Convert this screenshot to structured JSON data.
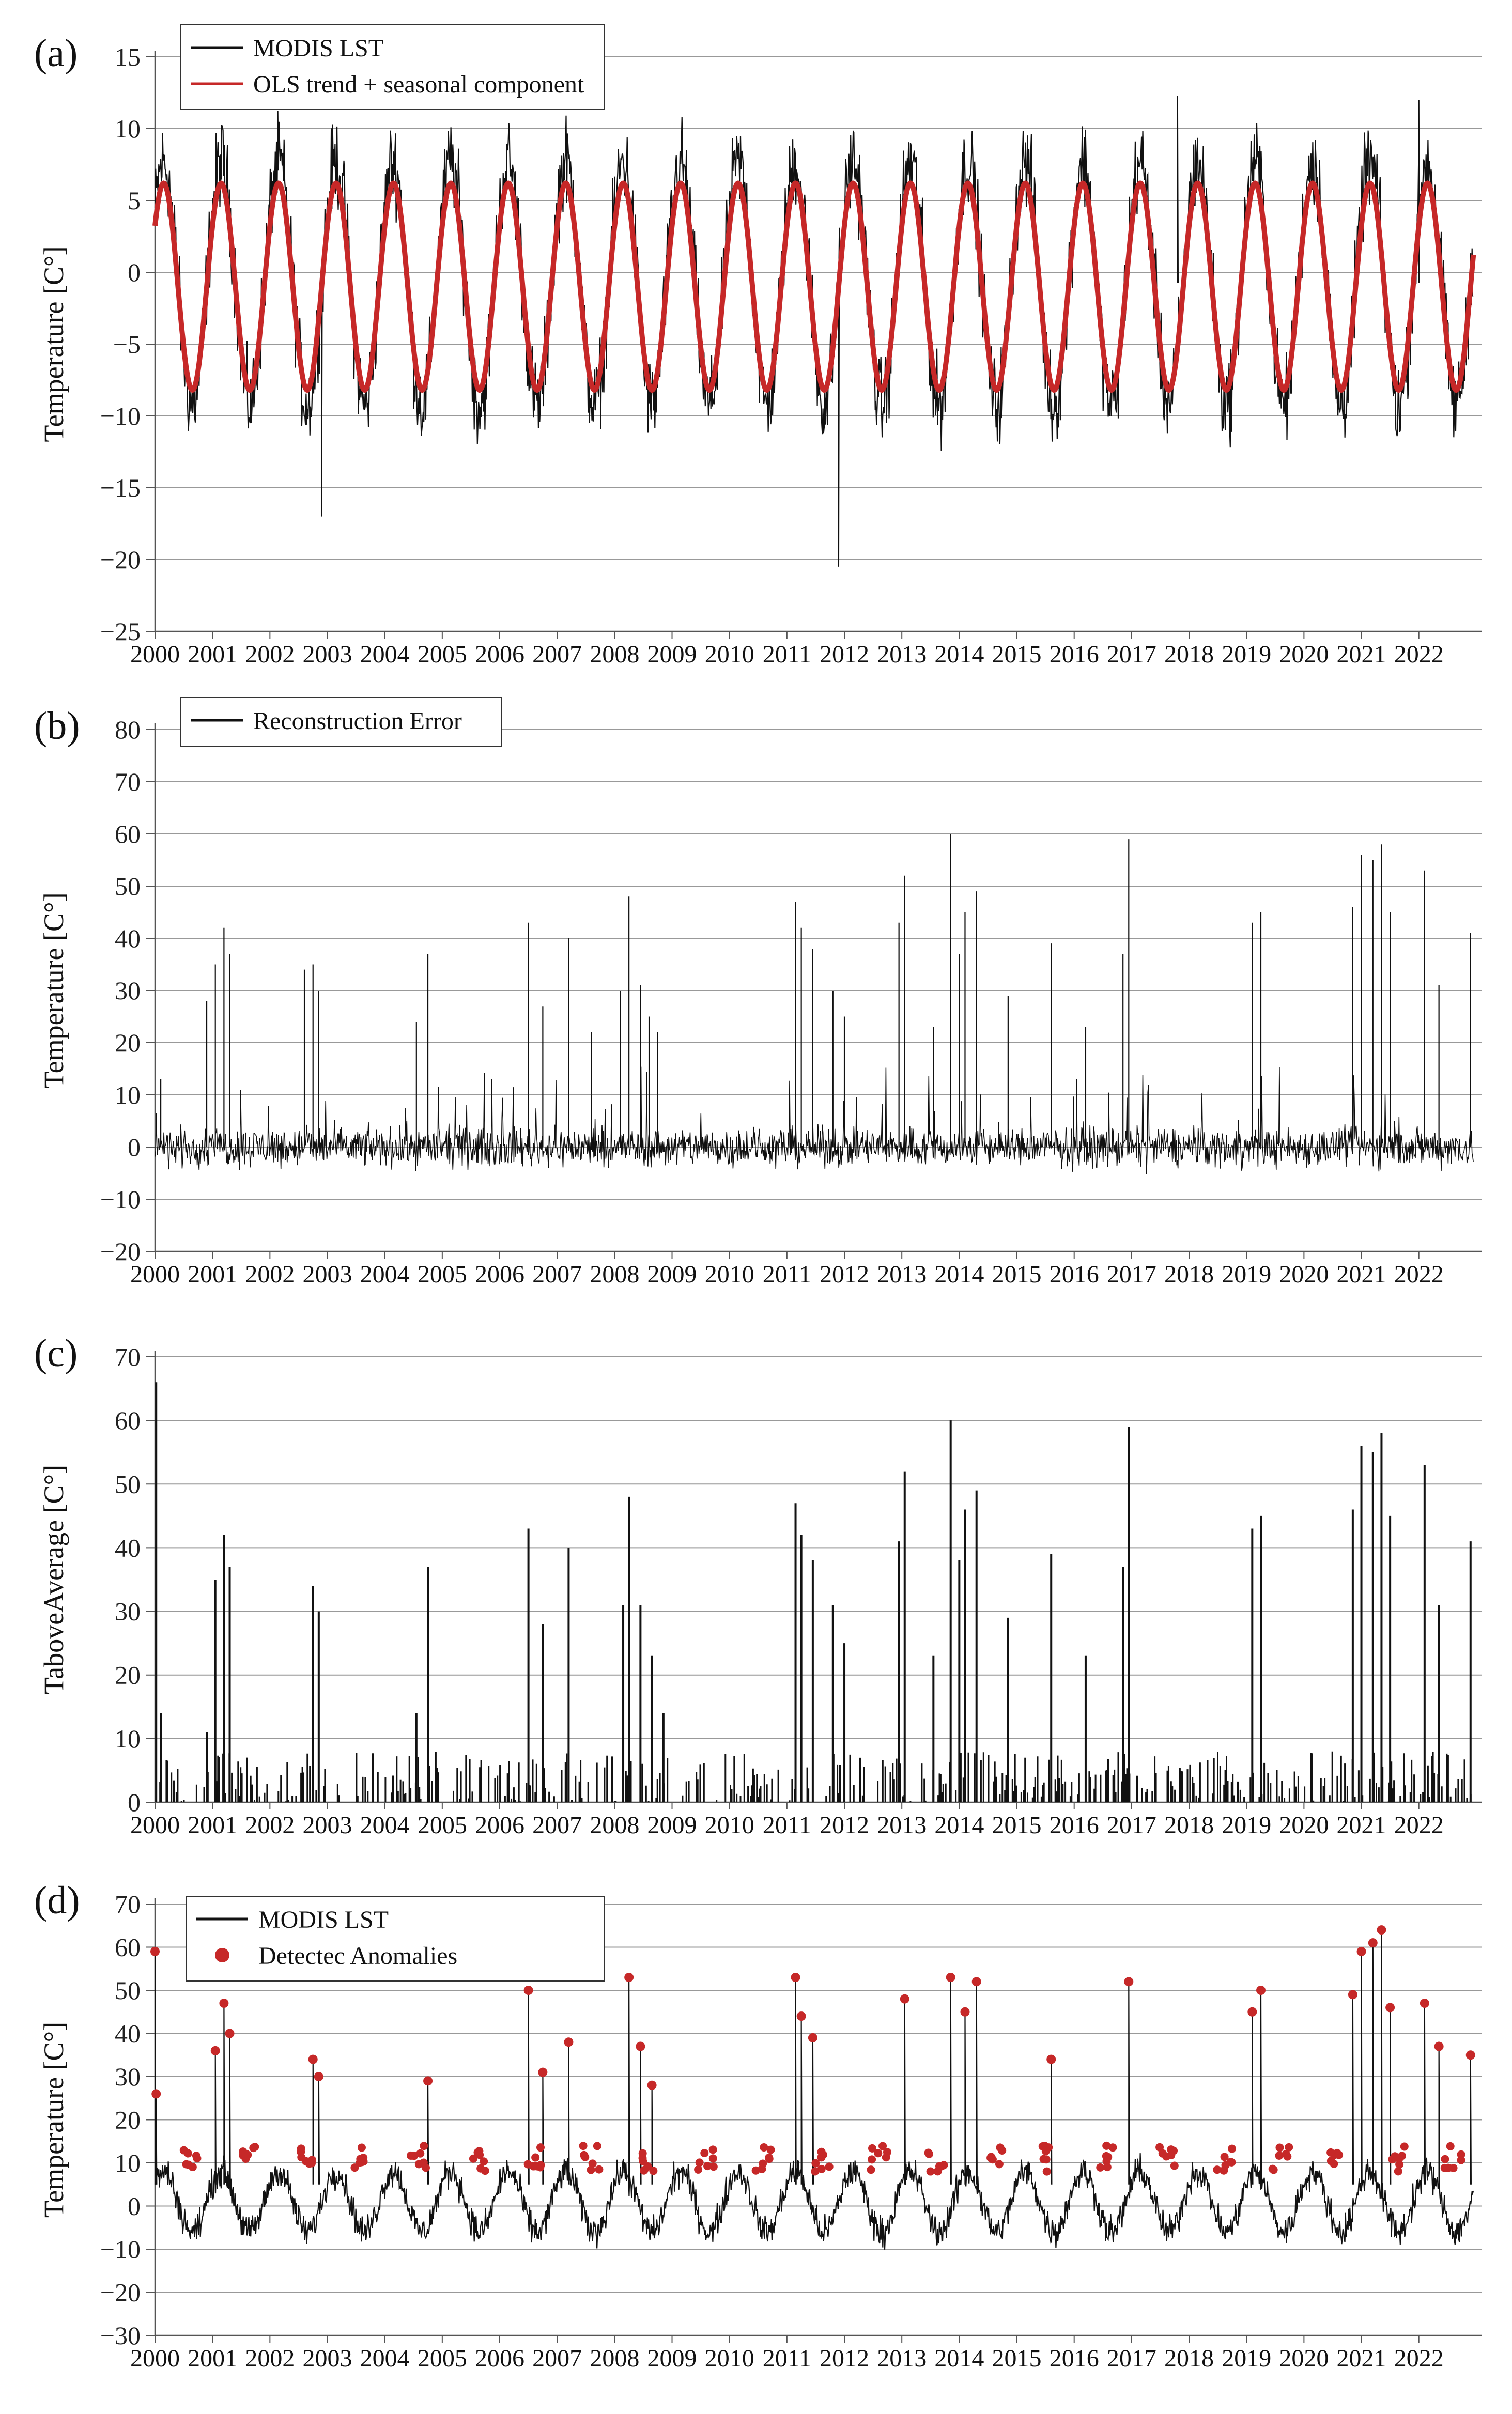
{
  "figure": {
    "line_color": "#111111",
    "accent_color": "#c62828",
    "grid_color": "#999999"
  },
  "chart_data": [
    {
      "id": "a",
      "panel_label": "(a)",
      "type": "line",
      "title": "",
      "xlabel": "",
      "ylabel": "Temperature [C°]",
      "xlim": [
        2000,
        2023.1
      ],
      "ylim": [
        -25,
        15
      ],
      "yticks": [
        15,
        10,
        5,
        0,
        -5,
        -10,
        -15,
        -20,
        -25
      ],
      "yticklabels": [
        "15",
        "10",
        "5",
        "0",
        "−5",
        "−10",
        "−15",
        "−20",
        "−25"
      ],
      "xticklabels": [
        "2000",
        "2001",
        "2002",
        "2003",
        "2004",
        "2005",
        "2006",
        "2007",
        "2008",
        "2009",
        "2010",
        "2011",
        "2012",
        "2013",
        "2014",
        "2015",
        "2016",
        "2017",
        "2018",
        "2019",
        "2020",
        "2021",
        "2022"
      ],
      "grid": true,
      "legend_position": "top-left",
      "legend": [
        {
          "label": "MODIS LST",
          "kind": "line",
          "color": "#111111"
        },
        {
          "label": "OLS trend + seasonal component",
          "kind": "line",
          "color": "#c62828"
        }
      ],
      "series": [
        {
          "name": "MODIS LST",
          "style": "daily line, annual cycle",
          "annual_peak": 10.5,
          "annual_trough": -12.0,
          "extremes": [
            {
              "x": 2002.9,
              "y": -17
            },
            {
              "x": 2011.9,
              "y": -20.5
            },
            {
              "x": 2017.8,
              "y": 12.3
            },
            {
              "x": 2022.0,
              "y": 12.0
            }
          ]
        },
        {
          "name": "OLS trend + seasonal component",
          "style": "smooth seasonal curve",
          "peak": 6.2,
          "trough": -8.2
        }
      ]
    },
    {
      "id": "b",
      "panel_label": "(b)",
      "type": "line",
      "title": "",
      "xlabel": "",
      "ylabel": "Temperature [C°]",
      "xlim": [
        2000,
        2023.1
      ],
      "ylim": [
        -20,
        80
      ],
      "yticks": [
        80,
        70,
        60,
        50,
        40,
        30,
        20,
        10,
        0,
        -10,
        -20
      ],
      "yticklabels": [
        "80",
        "70",
        "60",
        "50",
        "40",
        "30",
        "20",
        "10",
        "0",
        "−10",
        "−20"
      ],
      "xticklabels": [
        "2000",
        "2001",
        "2002",
        "2003",
        "2004",
        "2005",
        "2006",
        "2007",
        "2008",
        "2009",
        "2010",
        "2011",
        "2012",
        "2013",
        "2014",
        "2015",
        "2016",
        "2017",
        "2018",
        "2019",
        "2020",
        "2021",
        "2022"
      ],
      "grid": true,
      "legend_position": "top-left",
      "legend": [
        {
          "label": "Reconstruction Error",
          "kind": "line",
          "color": "#111111"
        }
      ],
      "spikes": [
        {
          "x": 2000.1,
          "y": 13
        },
        {
          "x": 2000.9,
          "y": 28
        },
        {
          "x": 2001.05,
          "y": 35
        },
        {
          "x": 2001.2,
          "y": 42
        },
        {
          "x": 2001.3,
          "y": 37
        },
        {
          "x": 2002.6,
          "y": 34
        },
        {
          "x": 2002.75,
          "y": 35
        },
        {
          "x": 2002.85,
          "y": 30
        },
        {
          "x": 2004.55,
          "y": 24
        },
        {
          "x": 2004.75,
          "y": 37
        },
        {
          "x": 2006.5,
          "y": 43
        },
        {
          "x": 2006.75,
          "y": 27
        },
        {
          "x": 2007.2,
          "y": 40
        },
        {
          "x": 2007.6,
          "y": 22
        },
        {
          "x": 2008.1,
          "y": 30
        },
        {
          "x": 2008.25,
          "y": 48
        },
        {
          "x": 2008.45,
          "y": 31
        },
        {
          "x": 2008.6,
          "y": 25
        },
        {
          "x": 2008.75,
          "y": 22
        },
        {
          "x": 2011.15,
          "y": 47
        },
        {
          "x": 2011.25,
          "y": 42
        },
        {
          "x": 2011.45,
          "y": 38
        },
        {
          "x": 2011.8,
          "y": 30
        },
        {
          "x": 2012.0,
          "y": 25
        },
        {
          "x": 2012.95,
          "y": 43
        },
        {
          "x": 2013.05,
          "y": 52
        },
        {
          "x": 2013.55,
          "y": 23
        },
        {
          "x": 2013.85,
          "y": 60
        },
        {
          "x": 2014.0,
          "y": 37
        },
        {
          "x": 2014.1,
          "y": 45
        },
        {
          "x": 2014.3,
          "y": 49
        },
        {
          "x": 2014.85,
          "y": 29
        },
        {
          "x": 2015.6,
          "y": 39
        },
        {
          "x": 2016.2,
          "y": 23
        },
        {
          "x": 2016.85,
          "y": 37
        },
        {
          "x": 2016.95,
          "y": 59
        },
        {
          "x": 2019.1,
          "y": 43
        },
        {
          "x": 2019.25,
          "y": 45
        },
        {
          "x": 2020.85,
          "y": 46
        },
        {
          "x": 2021.0,
          "y": 56
        },
        {
          "x": 2021.2,
          "y": 55
        },
        {
          "x": 2021.35,
          "y": 58
        },
        {
          "x": 2021.5,
          "y": 45
        },
        {
          "x": 2022.1,
          "y": 53
        },
        {
          "x": 2022.35,
          "y": 31
        },
        {
          "x": 2022.9,
          "y": 41
        }
      ]
    },
    {
      "id": "c",
      "panel_label": "(c)",
      "type": "line",
      "title": "",
      "xlabel": "",
      "ylabel": "TaboveAverage [C°]",
      "xlim": [
        2000,
        2023.1
      ],
      "ylim": [
        0,
        70
      ],
      "yticks": [
        70,
        60,
        50,
        40,
        30,
        20,
        10,
        0
      ],
      "yticklabels": [
        "70",
        "60",
        "50",
        "40",
        "30",
        "20",
        "10",
        "0"
      ],
      "xticklabels": [
        "2000",
        "2001",
        "2002",
        "2003",
        "2004",
        "2005",
        "2006",
        "2007",
        "2008",
        "2009",
        "2010",
        "2011",
        "2012",
        "2013",
        "2014",
        "2015",
        "2016",
        "2017",
        "2018",
        "2019",
        "2020",
        "2021",
        "2022"
      ],
      "grid": true,
      "legend_position": "none",
      "legend": [],
      "spikes": [
        {
          "x": 2000.02,
          "y": 66
        },
        {
          "x": 2000.1,
          "y": 14
        },
        {
          "x": 2000.9,
          "y": 11
        },
        {
          "x": 2001.05,
          "y": 35
        },
        {
          "x": 2001.2,
          "y": 42
        },
        {
          "x": 2001.3,
          "y": 37
        },
        {
          "x": 2002.75,
          "y": 34
        },
        {
          "x": 2002.85,
          "y": 30
        },
        {
          "x": 2004.55,
          "y": 14
        },
        {
          "x": 2004.75,
          "y": 37
        },
        {
          "x": 2006.5,
          "y": 43
        },
        {
          "x": 2006.75,
          "y": 28
        },
        {
          "x": 2007.2,
          "y": 40
        },
        {
          "x": 2008.15,
          "y": 31
        },
        {
          "x": 2008.25,
          "y": 48
        },
        {
          "x": 2008.45,
          "y": 31
        },
        {
          "x": 2008.65,
          "y": 23
        },
        {
          "x": 2008.85,
          "y": 14
        },
        {
          "x": 2011.15,
          "y": 47
        },
        {
          "x": 2011.25,
          "y": 42
        },
        {
          "x": 2011.45,
          "y": 38
        },
        {
          "x": 2011.8,
          "y": 31
        },
        {
          "x": 2012.0,
          "y": 25
        },
        {
          "x": 2012.95,
          "y": 41
        },
        {
          "x": 2013.05,
          "y": 52
        },
        {
          "x": 2013.55,
          "y": 23
        },
        {
          "x": 2013.85,
          "y": 60
        },
        {
          "x": 2014.0,
          "y": 38
        },
        {
          "x": 2014.1,
          "y": 46
        },
        {
          "x": 2014.3,
          "y": 49
        },
        {
          "x": 2014.85,
          "y": 29
        },
        {
          "x": 2015.6,
          "y": 39
        },
        {
          "x": 2016.2,
          "y": 23
        },
        {
          "x": 2016.85,
          "y": 37
        },
        {
          "x": 2016.95,
          "y": 59
        },
        {
          "x": 2019.1,
          "y": 43
        },
        {
          "x": 2019.25,
          "y": 45
        },
        {
          "x": 2020.85,
          "y": 46
        },
        {
          "x": 2021.0,
          "y": 56
        },
        {
          "x": 2021.2,
          "y": 55
        },
        {
          "x": 2021.35,
          "y": 58
        },
        {
          "x": 2021.5,
          "y": 45
        },
        {
          "x": 2022.1,
          "y": 53
        },
        {
          "x": 2022.35,
          "y": 31
        },
        {
          "x": 2022.9,
          "y": 41
        }
      ]
    },
    {
      "id": "d",
      "panel_label": "(d)",
      "type": "line",
      "title": "",
      "xlabel": "",
      "ylabel": "Temperature [C°]",
      "xlim": [
        2000,
        2023.1
      ],
      "ylim": [
        -30,
        70
      ],
      "yticks": [
        70,
        60,
        50,
        40,
        30,
        20,
        10,
        0,
        -10,
        -20,
        -30
      ],
      "yticklabels": [
        "70",
        "60",
        "50",
        "40",
        "30",
        "20",
        "10",
        "0",
        "−10",
        "−20",
        "−30"
      ],
      "xticklabels": [
        "2000",
        "2001",
        "2002",
        "2003",
        "2004",
        "2005",
        "2006",
        "2007",
        "2008",
        "2009",
        "2010",
        "2011",
        "2012",
        "2013",
        "2014",
        "2015",
        "2016",
        "2017",
        "2018",
        "2019",
        "2020",
        "2021",
        "2022"
      ],
      "grid": true,
      "legend_position": "top-left",
      "legend": [
        {
          "label": "MODIS LST",
          "kind": "line",
          "color": "#111111"
        },
        {
          "label": "Detectec Anomalies",
          "kind": "marker",
          "color": "#c62828"
        }
      ],
      "anomalies": [
        {
          "x": 2000.0,
          "y": 59
        },
        {
          "x": 2000.02,
          "y": 26
        },
        {
          "x": 2001.05,
          "y": 36
        },
        {
          "x": 2001.2,
          "y": 47
        },
        {
          "x": 2001.3,
          "y": 40
        },
        {
          "x": 2002.75,
          "y": 34
        },
        {
          "x": 2002.85,
          "y": 30
        },
        {
          "x": 2004.75,
          "y": 29
        },
        {
          "x": 2006.5,
          "y": 50
        },
        {
          "x": 2006.75,
          "y": 31
        },
        {
          "x": 2007.2,
          "y": 38
        },
        {
          "x": 2008.25,
          "y": 53
        },
        {
          "x": 2008.45,
          "y": 37
        },
        {
          "x": 2008.65,
          "y": 28
        },
        {
          "x": 2011.15,
          "y": 53
        },
        {
          "x": 2011.25,
          "y": 44
        },
        {
          "x": 2011.45,
          "y": 39
        },
        {
          "x": 2013.05,
          "y": 48
        },
        {
          "x": 2013.85,
          "y": 53
        },
        {
          "x": 2014.1,
          "y": 45
        },
        {
          "x": 2014.3,
          "y": 52
        },
        {
          "x": 2015.6,
          "y": 34
        },
        {
          "x": 2016.95,
          "y": 52
        },
        {
          "x": 2019.1,
          "y": 45
        },
        {
          "x": 2019.25,
          "y": 50
        },
        {
          "x": 2020.85,
          "y": 49
        },
        {
          "x": 2021.0,
          "y": 59
        },
        {
          "x": 2021.2,
          "y": 61
        },
        {
          "x": 2021.35,
          "y": 64
        },
        {
          "x": 2021.5,
          "y": 46
        },
        {
          "x": 2022.1,
          "y": 47
        },
        {
          "x": 2022.35,
          "y": 37
        },
        {
          "x": 2022.9,
          "y": 35
        }
      ]
    }
  ]
}
